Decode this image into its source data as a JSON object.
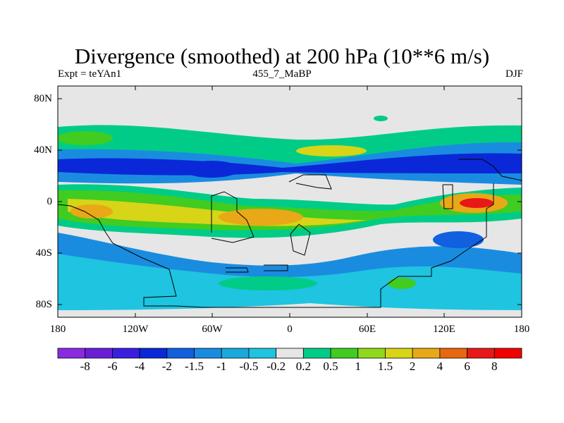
{
  "header": {
    "title": "Divergence (smoothed) at 200 hPa (10**6 m/s)",
    "left": "Expt = teYAn1",
    "center": "455_7_MaBP",
    "right": "DJF"
  },
  "axes": {
    "y_ticks": [
      "80N",
      "40N",
      "0",
      "40S",
      "80S"
    ],
    "x_ticks": [
      "180",
      "120W",
      "60W",
      "0",
      "60E",
      "120E",
      "180"
    ]
  },
  "colorbar": {
    "labels": [
      "-8",
      "-6",
      "-4",
      "-2",
      "-1.5",
      "-1",
      "-0.5",
      "-0.2",
      "0.2",
      "0.5",
      "1",
      "1.5",
      "2",
      "4",
      "6",
      "8"
    ],
    "colors": [
      "#8a2be2",
      "#6a1fd6",
      "#3a1ee0",
      "#0a28d8",
      "#1060e0",
      "#1a8ce0",
      "#18aadc",
      "#1ec4e0",
      "#e6e6e6",
      "#00cc88",
      "#40cc20",
      "#90d81c",
      "#d8d418",
      "#e8a818",
      "#e86810",
      "#e81818",
      "#f00000"
    ]
  },
  "map_colors": {
    "neutral": "#e6e6e6",
    "neg_light": "#1ec4e0",
    "neg_mid": "#1a8ce0",
    "neg_strong": "#1060e0",
    "neg_deep": "#0a28d8",
    "pos_light": "#00cc88",
    "pos_mid": "#40cc20",
    "pos_yel": "#d8d418",
    "pos_org": "#e8a818",
    "pos_red": "#e81818",
    "coast": "#000000"
  }
}
